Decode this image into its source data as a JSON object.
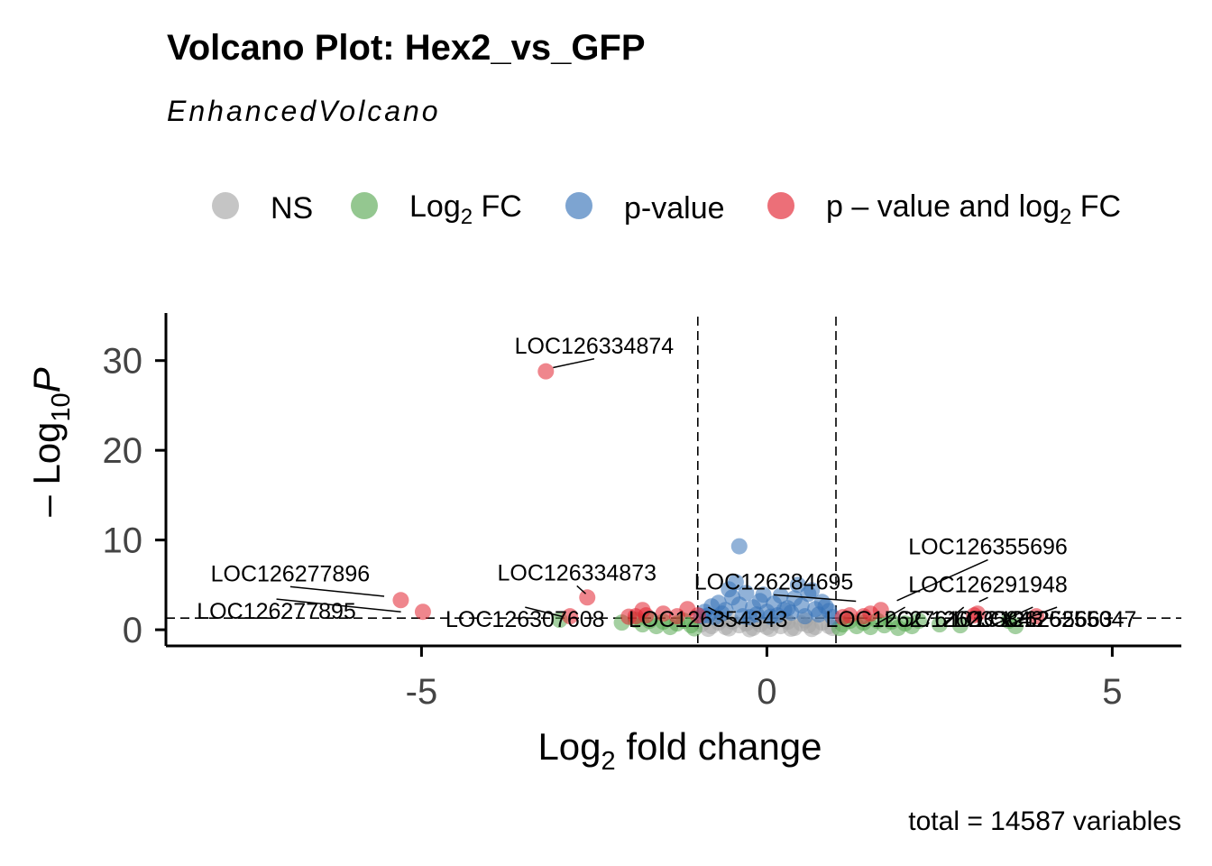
{
  "chart_data": {
    "type": "scatter",
    "title": "Volcano Plot: Hex2_vs_GFP",
    "subtitle": "EnhancedVolcano",
    "caption": "total = 14587 variables",
    "xlabel": {
      "main": "Log",
      "sub": "2",
      "rest": " fold change"
    },
    "ylabel": {
      "main": "– Log",
      "sub": "10",
      "italic": "P"
    },
    "xlim": [
      -8.7,
      6.0
    ],
    "ylim": [
      -1.8,
      35.3
    ],
    "x_ticks": [
      -5,
      0,
      5
    ],
    "x_tick_labels": [
      "-5",
      "0",
      "5"
    ],
    "y_ticks": [
      0,
      10,
      20,
      30
    ],
    "y_tick_labels": [
      "0",
      "10",
      "20",
      "30"
    ],
    "fc_cutoff": 1.0,
    "p_cutoff_neglog10": 1.3,
    "legend_position": "top",
    "legend": [
      {
        "key": "NS",
        "color": "#a6a6a6",
        "label": "NS"
      },
      {
        "key": "FC",
        "color": "#5aa954",
        "label_main": "Log",
        "label_sub": "2",
        "label_rest": " FC"
      },
      {
        "key": "P",
        "color": "#3773b8",
        "label": "p-value"
      },
      {
        "key": "PFC",
        "color": "#e2222f",
        "label_main": "p – value and log",
        "label_sub": "2",
        "label_rest": " FC"
      }
    ],
    "series": [
      {
        "key": "NS",
        "points": [
          [
            -0.95,
            0.6
          ],
          [
            -0.8,
            0.4
          ],
          [
            -0.7,
            0.8
          ],
          [
            -0.6,
            0.3
          ],
          [
            -0.5,
            0.9
          ],
          [
            -0.4,
            0.5
          ],
          [
            -0.3,
            0.7
          ],
          [
            -0.2,
            0.2
          ],
          [
            -0.1,
            0.6
          ],
          [
            0.0,
            0.3
          ],
          [
            0.1,
            0.8
          ],
          [
            0.2,
            0.4
          ],
          [
            0.3,
            0.9
          ],
          [
            0.4,
            0.2
          ],
          [
            0.5,
            0.7
          ],
          [
            0.6,
            0.5
          ],
          [
            0.7,
            0.3
          ],
          [
            0.8,
            0.8
          ],
          [
            0.9,
            0.4
          ],
          [
            -0.85,
            0.1
          ],
          [
            -0.55,
            0.15
          ],
          [
            -0.25,
            0.05
          ],
          [
            0.05,
            0.1
          ],
          [
            0.35,
            0.12
          ],
          [
            0.65,
            0.08
          ],
          [
            0.95,
            0.2
          ],
          [
            -0.15,
            1.0
          ],
          [
            0.25,
            1.1
          ],
          [
            0.55,
            1.05
          ],
          [
            -0.65,
            1.15
          ]
        ]
      },
      {
        "key": "FC",
        "points": [
          [
            -3.0,
            1.1
          ],
          [
            -2.1,
            0.8
          ],
          [
            -1.8,
            0.6
          ],
          [
            -1.7,
            1.0
          ],
          [
            -1.6,
            0.4
          ],
          [
            -1.5,
            0.9
          ],
          [
            -1.4,
            0.3
          ],
          [
            -1.3,
            0.7
          ],
          [
            -1.2,
            1.0
          ],
          [
            -1.1,
            0.5
          ],
          [
            1.1,
            0.6
          ],
          [
            1.2,
            1.0
          ],
          [
            1.3,
            0.4
          ],
          [
            1.4,
            0.8
          ],
          [
            1.5,
            0.3
          ],
          [
            1.6,
            1.0
          ],
          [
            1.7,
            0.5
          ],
          [
            1.8,
            0.9
          ],
          [
            1.9,
            0.2
          ],
          [
            2.0,
            0.7
          ],
          [
            2.1,
            0.4
          ],
          [
            2.2,
            1.0
          ],
          [
            2.5,
            0.6
          ],
          [
            2.8,
            0.5
          ],
          [
            3.5,
            1.0
          ],
          [
            3.6,
            0.4
          ],
          [
            -1.9,
            1.1
          ],
          [
            1.05,
            0.2
          ],
          [
            -1.05,
            0.15
          ]
        ]
      },
      {
        "key": "P",
        "points": [
          [
            -0.4,
            9.3
          ],
          [
            -0.45,
            5.3
          ],
          [
            0.45,
            5.0
          ],
          [
            -0.9,
            2.0
          ],
          [
            -0.8,
            2.6
          ],
          [
            -0.7,
            3.0
          ],
          [
            -0.6,
            2.2
          ],
          [
            -0.5,
            3.6
          ],
          [
            -0.4,
            2.8
          ],
          [
            -0.3,
            4.1
          ],
          [
            -0.2,
            2.5
          ],
          [
            -0.1,
            3.2
          ],
          [
            0.0,
            2.0
          ],
          [
            0.1,
            2.9
          ],
          [
            0.2,
            3.8
          ],
          [
            0.3,
            2.4
          ],
          [
            0.4,
            3.5
          ],
          [
            0.5,
            2.7
          ],
          [
            0.6,
            4.0
          ],
          [
            0.7,
            2.3
          ],
          [
            0.8,
            3.1
          ],
          [
            0.9,
            2.1
          ],
          [
            -0.85,
            1.6
          ],
          [
            -0.65,
            1.8
          ],
          [
            -0.35,
            1.5
          ],
          [
            -0.15,
            1.7
          ],
          [
            0.15,
            1.6
          ],
          [
            0.35,
            1.9
          ],
          [
            0.55,
            1.5
          ],
          [
            0.75,
            1.7
          ],
          [
            0.95,
            1.4
          ],
          [
            -0.95,
            1.5
          ],
          [
            -0.55,
            4.5
          ],
          [
            0.65,
            4.4
          ],
          [
            -0.25,
            1.4
          ],
          [
            0.05,
            1.45
          ],
          [
            0.25,
            2.2
          ],
          [
            -0.75,
            1.4
          ],
          [
            0.85,
            2.6
          ],
          [
            -0.05,
            3.9
          ]
        ]
      },
      {
        "key": "PFC",
        "points": [
          [
            -3.2,
            28.8
          ],
          [
            -2.6,
            3.6
          ],
          [
            -5.3,
            3.3
          ],
          [
            -4.98,
            2.0
          ],
          [
            -2.85,
            1.5
          ],
          [
            -1.8,
            2.2
          ],
          [
            -1.75,
            1.6
          ],
          [
            -1.5,
            1.8
          ],
          [
            -1.15,
            2.3
          ],
          [
            -1.9,
            1.5
          ],
          [
            -1.3,
            1.5
          ],
          [
            1.2,
            1.6
          ],
          [
            1.4,
            1.5
          ],
          [
            1.5,
            1.8
          ],
          [
            1.65,
            2.2
          ],
          [
            3.0,
            1.6
          ],
          [
            3.05,
            1.8
          ],
          [
            3.9,
            1.5
          ],
          [
            -1.0,
            1.6
          ],
          [
            -2.0,
            1.45
          ],
          [
            1.1,
            1.4
          ]
        ]
      }
    ],
    "labels": [
      {
        "text": "LOC126334874",
        "x": -3.2,
        "y": 28.8,
        "lx": -2.5,
        "ly": 30.8
      },
      {
        "text": "LOC126277896",
        "x": -5.3,
        "y": 3.3,
        "lx": -6.9,
        "ly": 5.4
      },
      {
        "text": "LOC126277895",
        "x": -4.98,
        "y": 2.0,
        "lx": -7.1,
        "ly": 1.2
      },
      {
        "text": "LOC126334873",
        "x": -2.6,
        "y": 3.6,
        "lx": -2.75,
        "ly": 5.5
      },
      {
        "text": "LOC126307608",
        "x": -2.85,
        "y": 1.5,
        "lx": -3.5,
        "ly": 0.3
      },
      {
        "text": "LOC126284695",
        "x": 1.5,
        "y": 2.8,
        "lx": 0.1,
        "ly": 4.5
      },
      {
        "text": "LOC126355696",
        "x": 1.65,
        "y": 2.2,
        "lx": 3.2,
        "ly": 8.4
      },
      {
        "text": "LOC126291948",
        "x": 3.05,
        "y": 2.8,
        "lx": 3.2,
        "ly": 4.2
      },
      {
        "text": "LOC126354343",
        "x": -0.3,
        "y": 0.5,
        "lx": -0.85,
        "ly": 0.3
      },
      {
        "text": "LOC126276101",
        "x": 1.5,
        "y": 0.5,
        "lx": 2.0,
        "ly": 0.3
      },
      {
        "text": "LOC126235843",
        "x": 2.5,
        "y": 0.5,
        "lx": 2.85,
        "ly": 0.3
      },
      {
        "text": "LOC126255047",
        "x": 3.4,
        "y": 0.5,
        "lx": 4.2,
        "ly": 0.3
      },
      {
        "text": "LOC126255663",
        "x": 3.2,
        "y": 0.5,
        "lx": 3.85,
        "ly": 0.3
      }
    ]
  }
}
